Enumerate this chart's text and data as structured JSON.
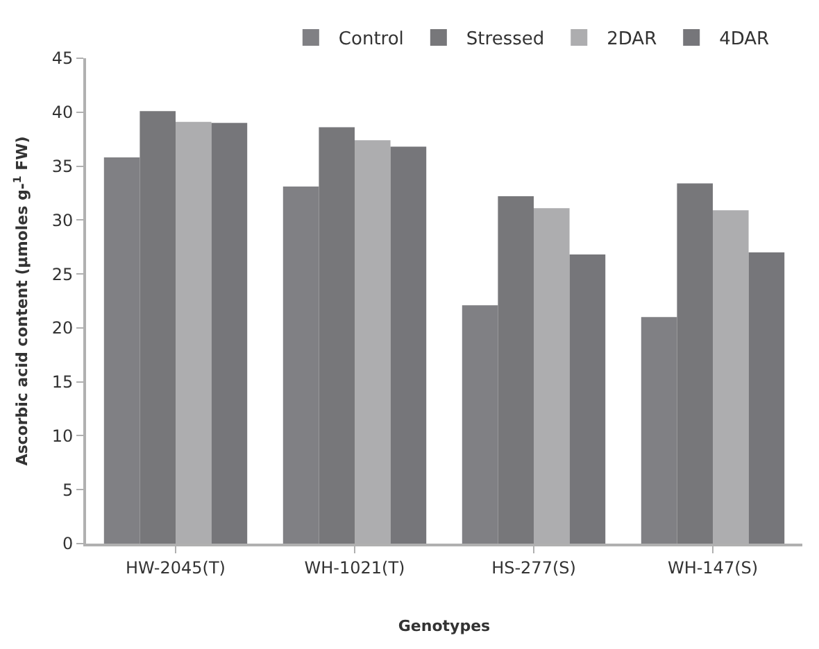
{
  "chart_data": {
    "type": "bar",
    "xlabel": "Genotypes",
    "ylabel": "Ascorbic acid content (µmoles g-$^{1}$ FW)",
    "categories": [
      "HW-2045(T)",
      "WH-1021(T)",
      "HS-277(S)",
      "WH-147(S)"
    ],
    "series": [
      {
        "name": "Control",
        "color": "#808084",
        "values": [
          35.8,
          33.1,
          22.1,
          21.0
        ]
      },
      {
        "name": "Stressed",
        "color": "#77777a",
        "values": [
          40.1,
          38.6,
          32.2,
          33.4
        ]
      },
      {
        "name": "2DAR",
        "color": "#adadaf",
        "values": [
          39.1,
          37.4,
          31.1,
          30.9
        ]
      },
      {
        "name": "4DAR",
        "color": "#76767a",
        "values": [
          39.0,
          36.8,
          26.8,
          27.0
        ]
      }
    ],
    "ylim": [
      0,
      45
    ],
    "yticks": [
      0,
      5,
      10,
      15,
      20,
      25,
      30,
      35,
      40,
      45
    ],
    "legend": "top"
  }
}
